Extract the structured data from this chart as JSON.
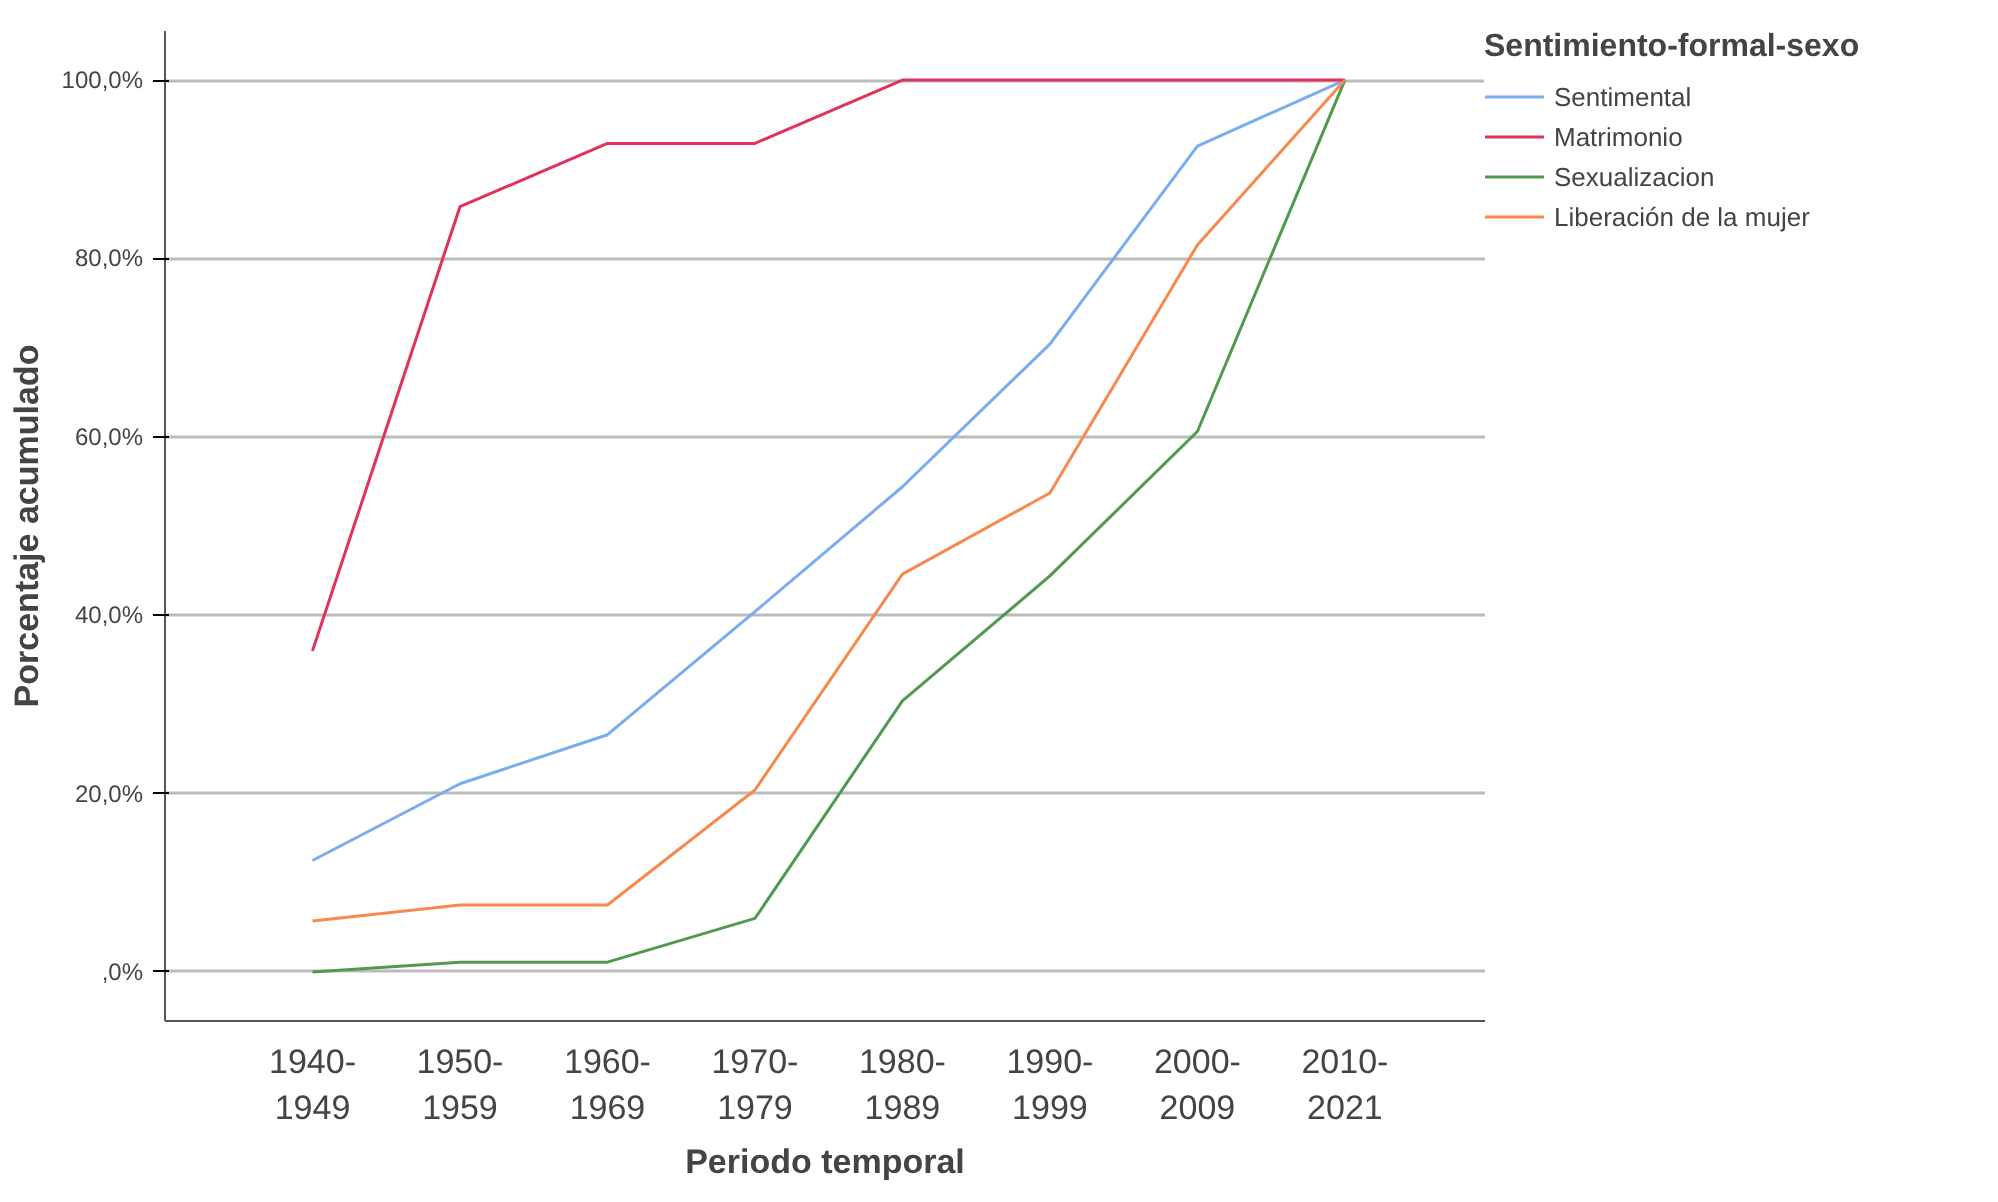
{
  "chart_data": {
    "type": "line",
    "xlabel": "Periodo temporal",
    "ylabel": "Porcentaje acumulado",
    "legend_title": "Sentimiento-formal-sexo",
    "categories": [
      "1940-1949",
      "1950-1959",
      "1960-1969",
      "1970-1979",
      "1980-1989",
      "1990-1999",
      "2000-2009",
      "2010-2021"
    ],
    "series": [
      {
        "name": "Sentimental",
        "color": "#7aacf0",
        "values": [
          12.5,
          21.1,
          26.6,
          40.4,
          54.4,
          70.4,
          92.6,
          100
        ]
      },
      {
        "name": "Matrimonio",
        "color": "#e0325a",
        "values": [
          36,
          85.8,
          92.9,
          92.9,
          100,
          100,
          100,
          100
        ]
      },
      {
        "name": "Sexualizacion",
        "color": "#4f9a4f",
        "values": [
          0,
          1.1,
          1.1,
          6.0,
          30.4,
          44.4,
          60.6,
          100
        ]
      },
      {
        "name": "Liberación de la mujer",
        "color": "#f7894f",
        "values": [
          5.7,
          7.5,
          7.5,
          20.4,
          44.6,
          53.7,
          81.5,
          100
        ]
      }
    ],
    "ylim": [
      -5.5,
      105.5
    ],
    "yticks": [
      {
        "value": 0,
        "label": ",0%"
      },
      {
        "value": 20,
        "label": "20,0%"
      },
      {
        "value": 40,
        "label": "40,0%"
      },
      {
        "value": 60,
        "label": "60,0%"
      },
      {
        "value": 80,
        "label": "80,0%"
      },
      {
        "value": 100,
        "label": "100,0%"
      }
    ],
    "grid": "y",
    "legend": "top right",
    "marker": "none",
    "line_style": "solid"
  }
}
